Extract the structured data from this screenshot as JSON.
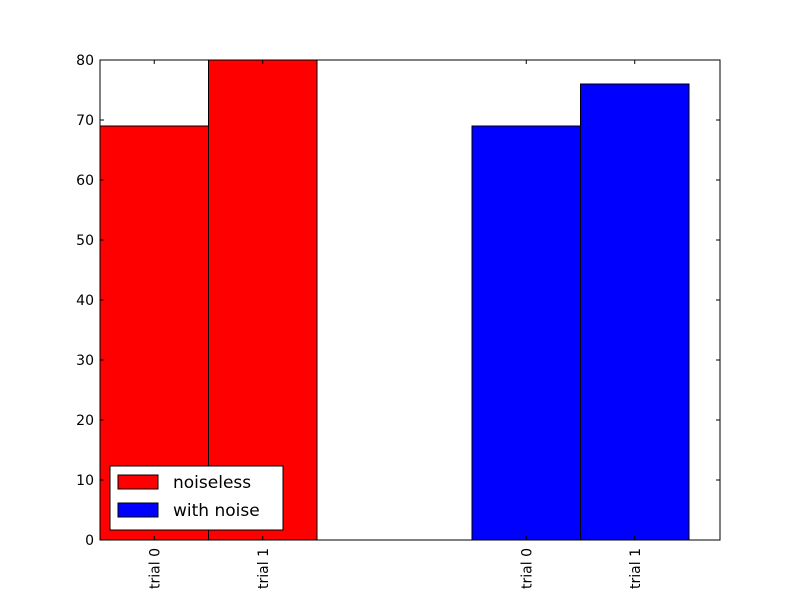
{
  "chart_data": {
    "type": "bar",
    "categories": [
      "trial 0",
      "trial 1"
    ],
    "series": [
      {
        "name": "noiseless",
        "color": "#ff0000",
        "values": [
          69,
          80
        ]
      },
      {
        "name": "with noise",
        "color": "#0000ff",
        "values": [
          69,
          76
        ]
      }
    ],
    "ylim": [
      0,
      80
    ],
    "yticks": [
      0,
      10,
      20,
      30,
      40,
      50,
      60,
      70,
      80
    ],
    "grid": false,
    "legend": "lower left"
  }
}
